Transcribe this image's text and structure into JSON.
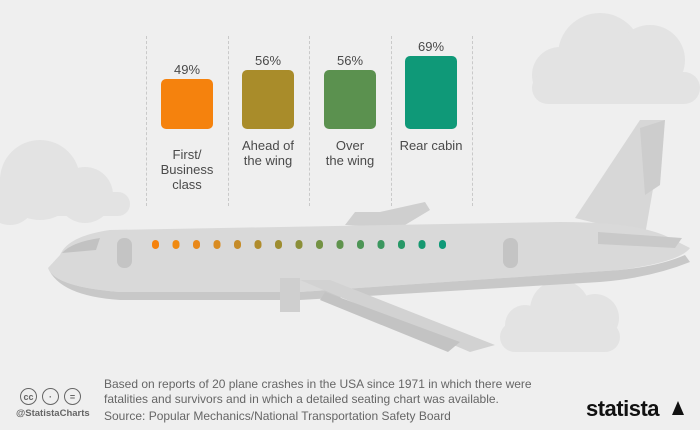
{
  "chart_data": {
    "type": "bar",
    "categories": [
      "First/\nBusiness\nclass",
      "Ahead of\nthe wing",
      "Over\nthe wing",
      "Rear cabin"
    ],
    "values": [
      49,
      56,
      56,
      69
    ],
    "value_labels": [
      "49%",
      "56%",
      "56%",
      "69%"
    ],
    "colors": [
      "#f5820d",
      "#a98c2a",
      "#5b914f",
      "#0f9978"
    ],
    "title": "",
    "xlabel": "",
    "ylabel": ""
  },
  "window_dot_colors": [
    "#f5820d",
    "#f08a12",
    "#e8881a",
    "#d98c22",
    "#c58c2a",
    "#b08c2c",
    "#9e8d30",
    "#8b8f38",
    "#749243",
    "#5f934d",
    "#4d9556",
    "#3b975f",
    "#289867",
    "#169870",
    "#0f9978"
  ],
  "footer": {
    "note": "Based on reports of 20 plane crashes in the USA since 1971 in which there were fatalities and survivors and in which a detailed seating chart was available.",
    "source": "Source: Popular Mechanics/National Transportation Safety Board",
    "handle": "@StatistaCharts",
    "license_icons": [
      "cc-icon",
      "person-icon",
      "equals-icon"
    ],
    "license_glyphs": [
      "cc",
      "·",
      "="
    ],
    "brand": "statista"
  }
}
